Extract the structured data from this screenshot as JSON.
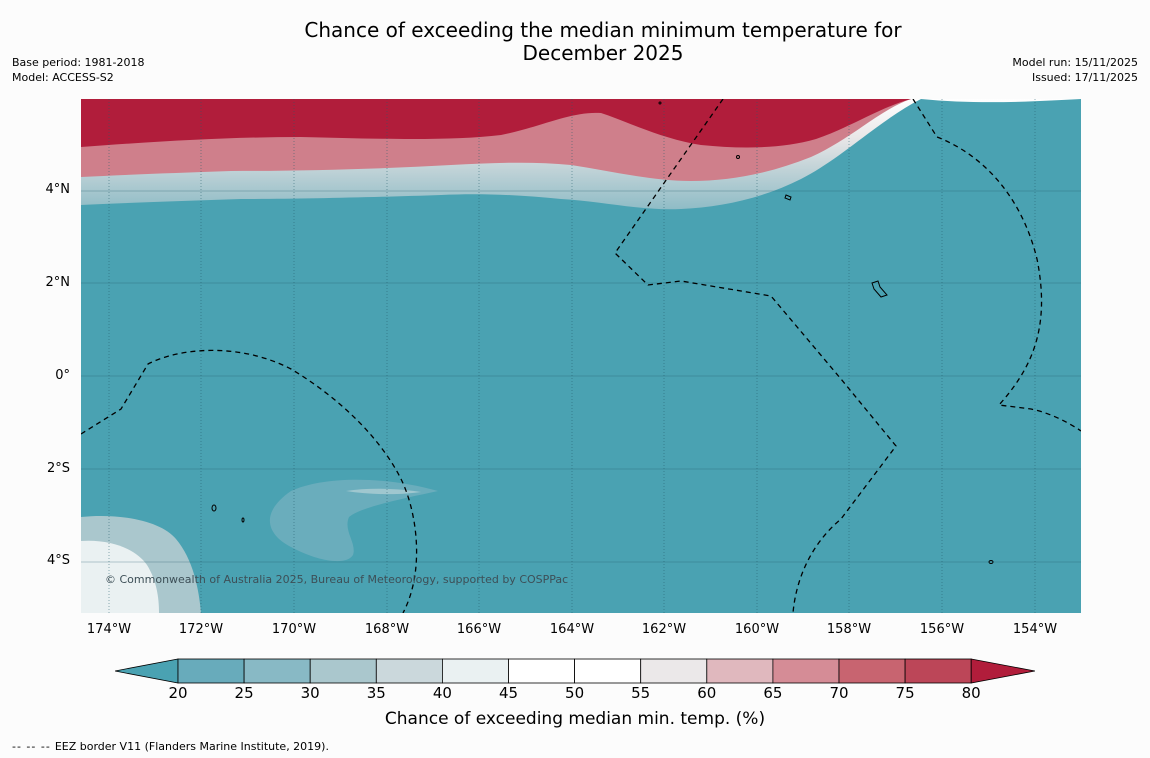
{
  "title_line1": "Chance of exceeding the median minimum temperature for",
  "title_line2": "December 2025",
  "meta_left": [
    "Base period: 1981-2018",
    "Model: ACCESS-S2"
  ],
  "meta_right": [
    "Model run: 15/11/2025",
    "Issued: 17/11/2025"
  ],
  "lat_labels": [
    "4°N",
    "2°N",
    "0°",
    "2°S",
    "4°S"
  ],
  "lon_labels": [
    "174°W",
    "172°W",
    "170°W",
    "168°W",
    "166°W",
    "164°W",
    "162°W",
    "160°W",
    "158°W",
    "156°W",
    "154°W"
  ],
  "copyright": "© Commonwealth of Australia 2025, Bureau of Meteorology, supported by COSPPac",
  "colorbar": {
    "ticks": [
      "20",
      "25",
      "30",
      "35",
      "40",
      "45",
      "50",
      "55",
      "60",
      "65",
      "70",
      "75",
      "80"
    ],
    "label": "Chance of exceeding median min. temp. (%)",
    "colors": [
      "#4aa2b2",
      "#68abbb",
      "#88b9c5",
      "#aac7cd",
      "#cbd8dc",
      "#eaf1f2",
      "#ffffff",
      "#ffffff",
      "#ebe8e9",
      "#e0b8be",
      "#d58c96",
      "#c86470",
      "#bc4658",
      "#b11d3b"
    ]
  },
  "footnote_dashes": "-- -- --",
  "footnote": "EEZ border V11 (Flanders Marine Institute, 2019)."
}
